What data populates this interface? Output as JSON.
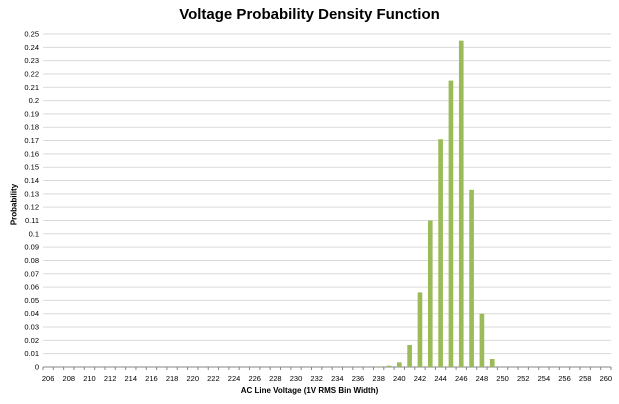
{
  "chart_data": {
    "type": "bar",
    "title": "Voltage Probability Density Function",
    "xlabel": "AC Line Voltage (1V RMS Bin Width)",
    "ylabel": "Probability",
    "ylim": [
      0,
      0.25
    ],
    "y_ticks": [
      "0",
      "0.01",
      "0.02",
      "0.03",
      "0.04",
      "0.05",
      "0.06",
      "0.07",
      "0.08",
      "0.09",
      "0.1",
      "0.11",
      "0.12",
      "0.13",
      "0.14",
      "0.15",
      "0.16",
      "0.17",
      "0.18",
      "0.19",
      "0.2",
      "0.21",
      "0.22",
      "0.23",
      "0.24",
      "0.25"
    ],
    "x_tick_labels": [
      "206",
      "208",
      "210",
      "212",
      "214",
      "216",
      "218",
      "220",
      "222",
      "224",
      "226",
      "228",
      "230",
      "232",
      "234",
      "236",
      "238",
      "240",
      "242",
      "244",
      "246",
      "248",
      "250",
      "252",
      "254",
      "256",
      "258",
      "260"
    ],
    "x_range": [
      206,
      260
    ],
    "grid": "horizontal",
    "bar_color": "#9bbb59",
    "categories": [
      206,
      207,
      208,
      209,
      210,
      211,
      212,
      213,
      214,
      215,
      216,
      217,
      218,
      219,
      220,
      221,
      222,
      223,
      224,
      225,
      226,
      227,
      228,
      229,
      230,
      231,
      232,
      233,
      234,
      235,
      236,
      237,
      238,
      239,
      240,
      241,
      242,
      243,
      244,
      245,
      246,
      247,
      248,
      249,
      250,
      251,
      252,
      253,
      254,
      255,
      256,
      257,
      258,
      259,
      260
    ],
    "values": [
      0,
      0,
      0,
      0,
      0,
      0,
      0,
      0,
      0,
      0,
      0,
      0,
      0,
      0,
      0,
      0,
      0,
      0,
      0,
      0,
      0,
      0,
      0,
      0,
      0,
      0,
      0,
      0,
      0,
      0,
      0,
      0,
      0.0005,
      0.001,
      0.0035,
      0.0165,
      0.056,
      0.11,
      0.171,
      0.215,
      0.245,
      0.133,
      0.04,
      0.006,
      0,
      0,
      0,
      0,
      0,
      0,
      0,
      0,
      0,
      0,
      0
    ]
  }
}
